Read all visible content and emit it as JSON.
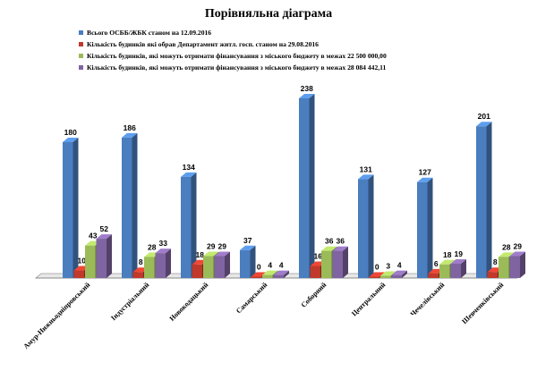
{
  "chart_data": {
    "type": "bar",
    "title": "Порівняльна діаграма",
    "categories": [
      "Амур-Нижньодніпровський",
      "Індустріальний",
      "Новокодацький",
      "Самарський",
      "Соборний",
      "Центральний",
      "Чечелівський",
      "Шевченківський"
    ],
    "series": [
      {
        "name": "Всього ОСББ/ЖБК станом на 12.09.2016",
        "values": [
          180,
          186,
          134,
          37,
          238,
          131,
          127,
          201
        ],
        "color": "#4a7ebf"
      },
      {
        "name": "Кількість будинків які обрав Департамент житл. госп. станом на 29.08.2016",
        "values": [
          10,
          8,
          18,
          0,
          16,
          0,
          6,
          8
        ],
        "color": "#c0392b"
      },
      {
        "name": "Кількість будинків, які можуть отримати фінансування з міського бюджету в межах 22 500 000,00",
        "values": [
          43,
          28,
          29,
          4,
          36,
          3,
          18,
          28
        ],
        "color": "#9bbb59"
      },
      {
        "name": "Кількість будинків, які можуть отримати фінансування з міського бюджету в межах 28 084 442,11",
        "values": [
          52,
          33,
          29,
          4,
          36,
          4,
          19,
          29
        ],
        "color": "#8064a2"
      }
    ],
    "ylim": [
      0,
      238
    ],
    "grid": false,
    "legend_position": "top",
    "three_d": true
  }
}
